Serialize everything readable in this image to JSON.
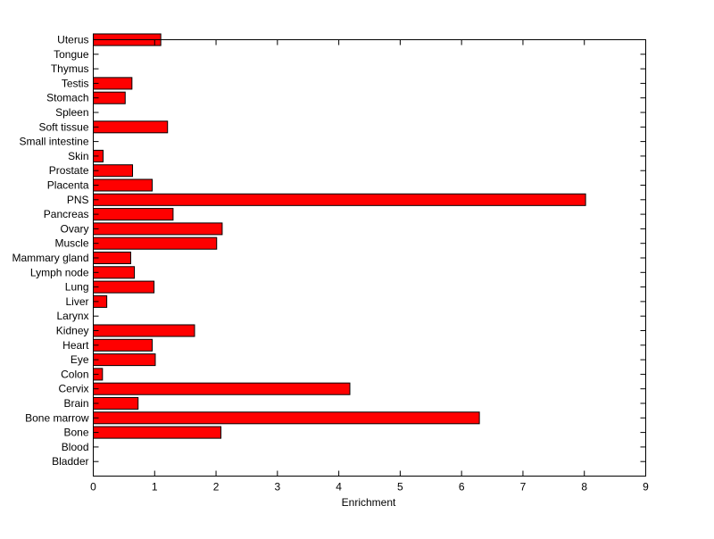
{
  "chart_data": {
    "type": "bar",
    "orientation": "horizontal",
    "title": "",
    "xlabel": "Enrichment",
    "ylabel": "",
    "xlim": [
      0,
      9
    ],
    "ylim": [
      0,
      30
    ],
    "xticks": [
      "0",
      "1",
      "2",
      "3",
      "4",
      "5",
      "6",
      "7",
      "8",
      "9"
    ],
    "grid": false,
    "bar_color": "#ff0000",
    "categories": [
      "Bladder",
      "Blood",
      "Bone",
      "Bone marrow",
      "Brain",
      "Cervix",
      "Colon",
      "Eye",
      "Heart",
      "Kidney",
      "Larynx",
      "Liver",
      "Lung",
      "Lymph node",
      "Mammary gland",
      "Muscle",
      "Ovary",
      "Pancreas",
      "PNS",
      "Placenta",
      "Prostate",
      "Skin",
      "Small intestine",
      "Soft tissue",
      "Spleen",
      "Stomach",
      "Testis",
      "Thymus",
      "Tongue",
      "Uterus"
    ],
    "values": [
      0,
      0,
      2.08,
      6.29,
      0.73,
      4.18,
      0.15,
      1.01,
      0.96,
      1.65,
      0,
      0.22,
      0.99,
      0.67,
      0.61,
      2.01,
      2.1,
      1.3,
      8.02,
      0.96,
      0.64,
      0.16,
      0,
      1.21,
      0,
      0.52,
      0.63,
      0,
      0,
      1.1
    ]
  }
}
